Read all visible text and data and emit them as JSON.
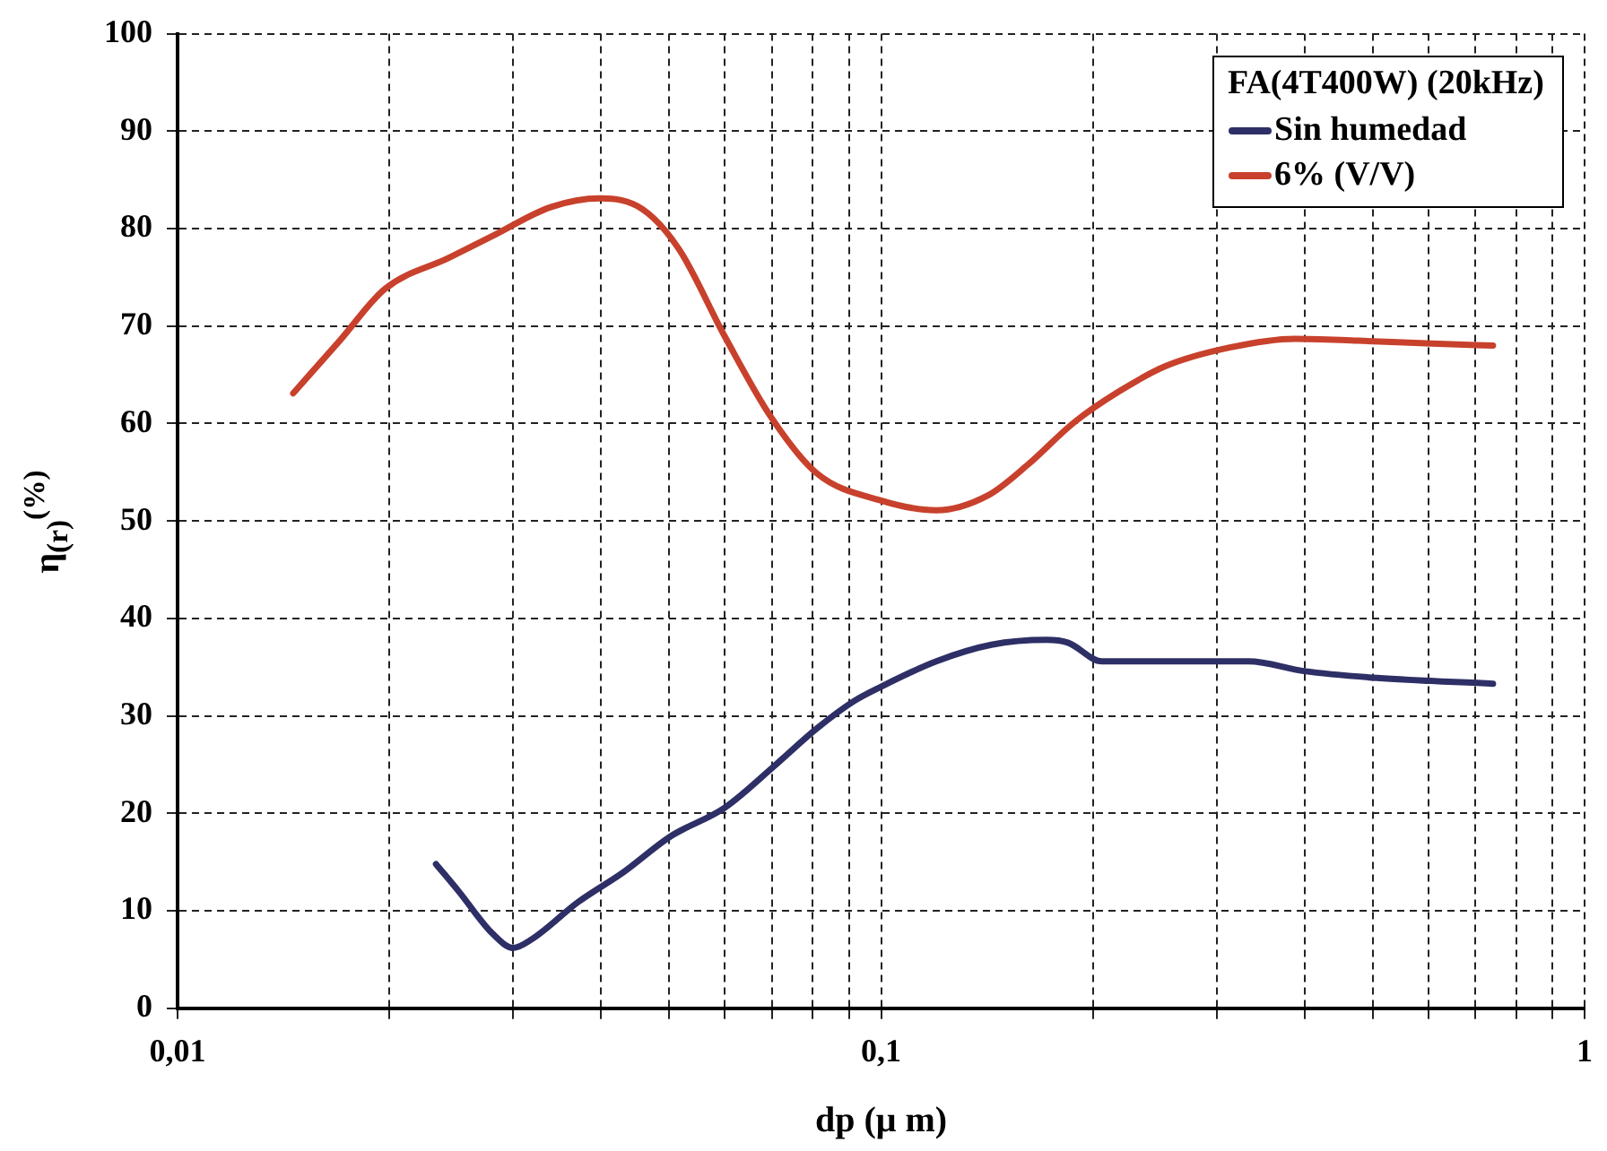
{
  "chart_data": {
    "type": "line",
    "xlabel": "dp (μ m)",
    "ylabel": "η$_{(r)}$$^{(%)}$",
    "legend_title": "FA(4T400W) (20kHz)",
    "legend": "top right",
    "grid": true,
    "log": "x",
    "line_style": "solid",
    "marker": "none",
    "xlim": [
      0.01,
      1
    ],
    "ylim": [
      0,
      100
    ],
    "xticks": [
      {
        "value": 0.01,
        "label": "0,01"
      },
      {
        "value": 0.02,
        "label": null
      },
      {
        "value": 0.03,
        "label": null
      },
      {
        "value": 0.04,
        "label": null
      },
      {
        "value": 0.05,
        "label": null
      },
      {
        "value": 0.06,
        "label": null
      },
      {
        "value": 0.07,
        "label": null
      },
      {
        "value": 0.08,
        "label": null
      },
      {
        "value": 0.09,
        "label": null
      },
      {
        "value": 0.1,
        "label": "0,1"
      },
      {
        "value": 0.2,
        "label": null
      },
      {
        "value": 0.3,
        "label": null
      },
      {
        "value": 0.4,
        "label": null
      },
      {
        "value": 0.5,
        "label": null
      },
      {
        "value": 0.6,
        "label": null
      },
      {
        "value": 0.7,
        "label": null
      },
      {
        "value": 0.8,
        "label": null
      },
      {
        "value": 0.9,
        "label": null
      },
      {
        "value": 1,
        "label": "1"
      }
    ],
    "yticks": [
      0,
      10,
      20,
      30,
      40,
      50,
      60,
      70,
      80,
      90,
      100
    ],
    "series": [
      {
        "name": "Sin humedad",
        "color": "#2e2f66",
        "x": [
          0.0233,
          0.0251,
          0.028,
          0.03,
          0.0319,
          0.0371,
          0.0431,
          0.0501,
          0.06,
          0.0706,
          0.081,
          0.0914,
          0.1,
          0.1198,
          0.1435,
          0.1718,
          0.1846,
          0.206,
          0.278,
          0.333,
          0.399,
          0.507,
          0.741
        ],
        "values": [
          14.8,
          12.0,
          7.7,
          6.2,
          7.1,
          10.9,
          14.0,
          17.6,
          20.6,
          24.9,
          28.7,
          31.5,
          33.0,
          35.6,
          37.3,
          37.8,
          37.5,
          35.6,
          35.6,
          35.6,
          34.6,
          33.9,
          33.3
        ]
      },
      {
        "name": "6% (V/V)",
        "color": "#c8412c",
        "x": [
          0.0146,
          0.017,
          0.0197,
          0.0243,
          0.0283,
          0.0339,
          0.0399,
          0.0458,
          0.0516,
          0.06,
          0.0697,
          0.081,
          0.1,
          0.1198,
          0.1417,
          0.1618,
          0.188,
          0.218,
          0.254,
          0.313,
          0.387,
          0.477,
          0.607,
          0.741
        ],
        "values": [
          63.1,
          68.5,
          73.8,
          77.0,
          79.4,
          82.2,
          83.1,
          82.0,
          77.9,
          68.9,
          60.7,
          54.9,
          52.1,
          51.1,
          52.6,
          55.8,
          60.1,
          63.3,
          65.9,
          67.8,
          68.7,
          68.5,
          68.2,
          68.0
        ]
      }
    ]
  }
}
